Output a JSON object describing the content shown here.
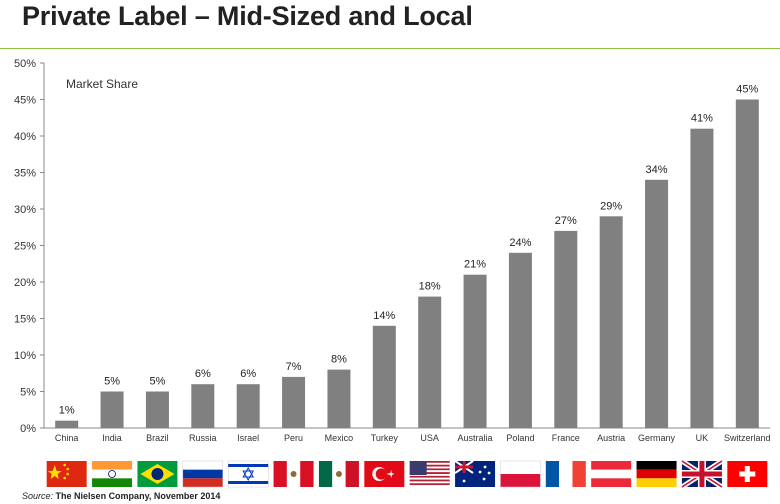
{
  "header": {
    "title": "Private Label – Mid-Sized and Local"
  },
  "source": {
    "label": "Source:",
    "text": "The Nielsen Company, November 2014"
  },
  "chart_data": {
    "type": "bar",
    "annotation": "Market Share",
    "categories": [
      "China",
      "India",
      "Brazil",
      "Russia",
      "Israel",
      "Peru",
      "Mexico",
      "Turkey",
      "USA",
      "Australia",
      "Poland",
      "France",
      "Austria",
      "Germany",
      "UK",
      "Switzerland"
    ],
    "values": [
      1,
      5,
      5,
      6,
      6,
      7,
      8,
      14,
      18,
      21,
      24,
      27,
      29,
      34,
      41,
      45
    ],
    "data_labels": [
      "1%",
      "5%",
      "5%",
      "6%",
      "6%",
      "7%",
      "8%",
      "14%",
      "18%",
      "21%",
      "24%",
      "27%",
      "29%",
      "34%",
      "41%",
      "45%"
    ],
    "ylim": [
      0,
      50
    ],
    "yticks": [
      0,
      5,
      10,
      15,
      20,
      25,
      30,
      35,
      40,
      45,
      50
    ],
    "ytick_labels": [
      "0%",
      "5%",
      "10%",
      "15%",
      "20%",
      "25%",
      "30%",
      "35%",
      "40%",
      "45%",
      "50%"
    ],
    "bar_color": "#808080",
    "grid": false,
    "legend": "none",
    "flags": [
      "china-flag-icon",
      "india-flag-icon",
      "brazil-flag-icon",
      "russia-flag-icon",
      "israel-flag-icon",
      "peru-flag-icon",
      "mexico-flag-icon",
      "turkey-flag-icon",
      "usa-flag-icon",
      "australia-flag-icon",
      "poland-flag-icon",
      "france-flag-icon",
      "austria-flag-icon",
      "germany-flag-icon",
      "uk-flag-icon",
      "switzerland-flag-icon"
    ]
  }
}
